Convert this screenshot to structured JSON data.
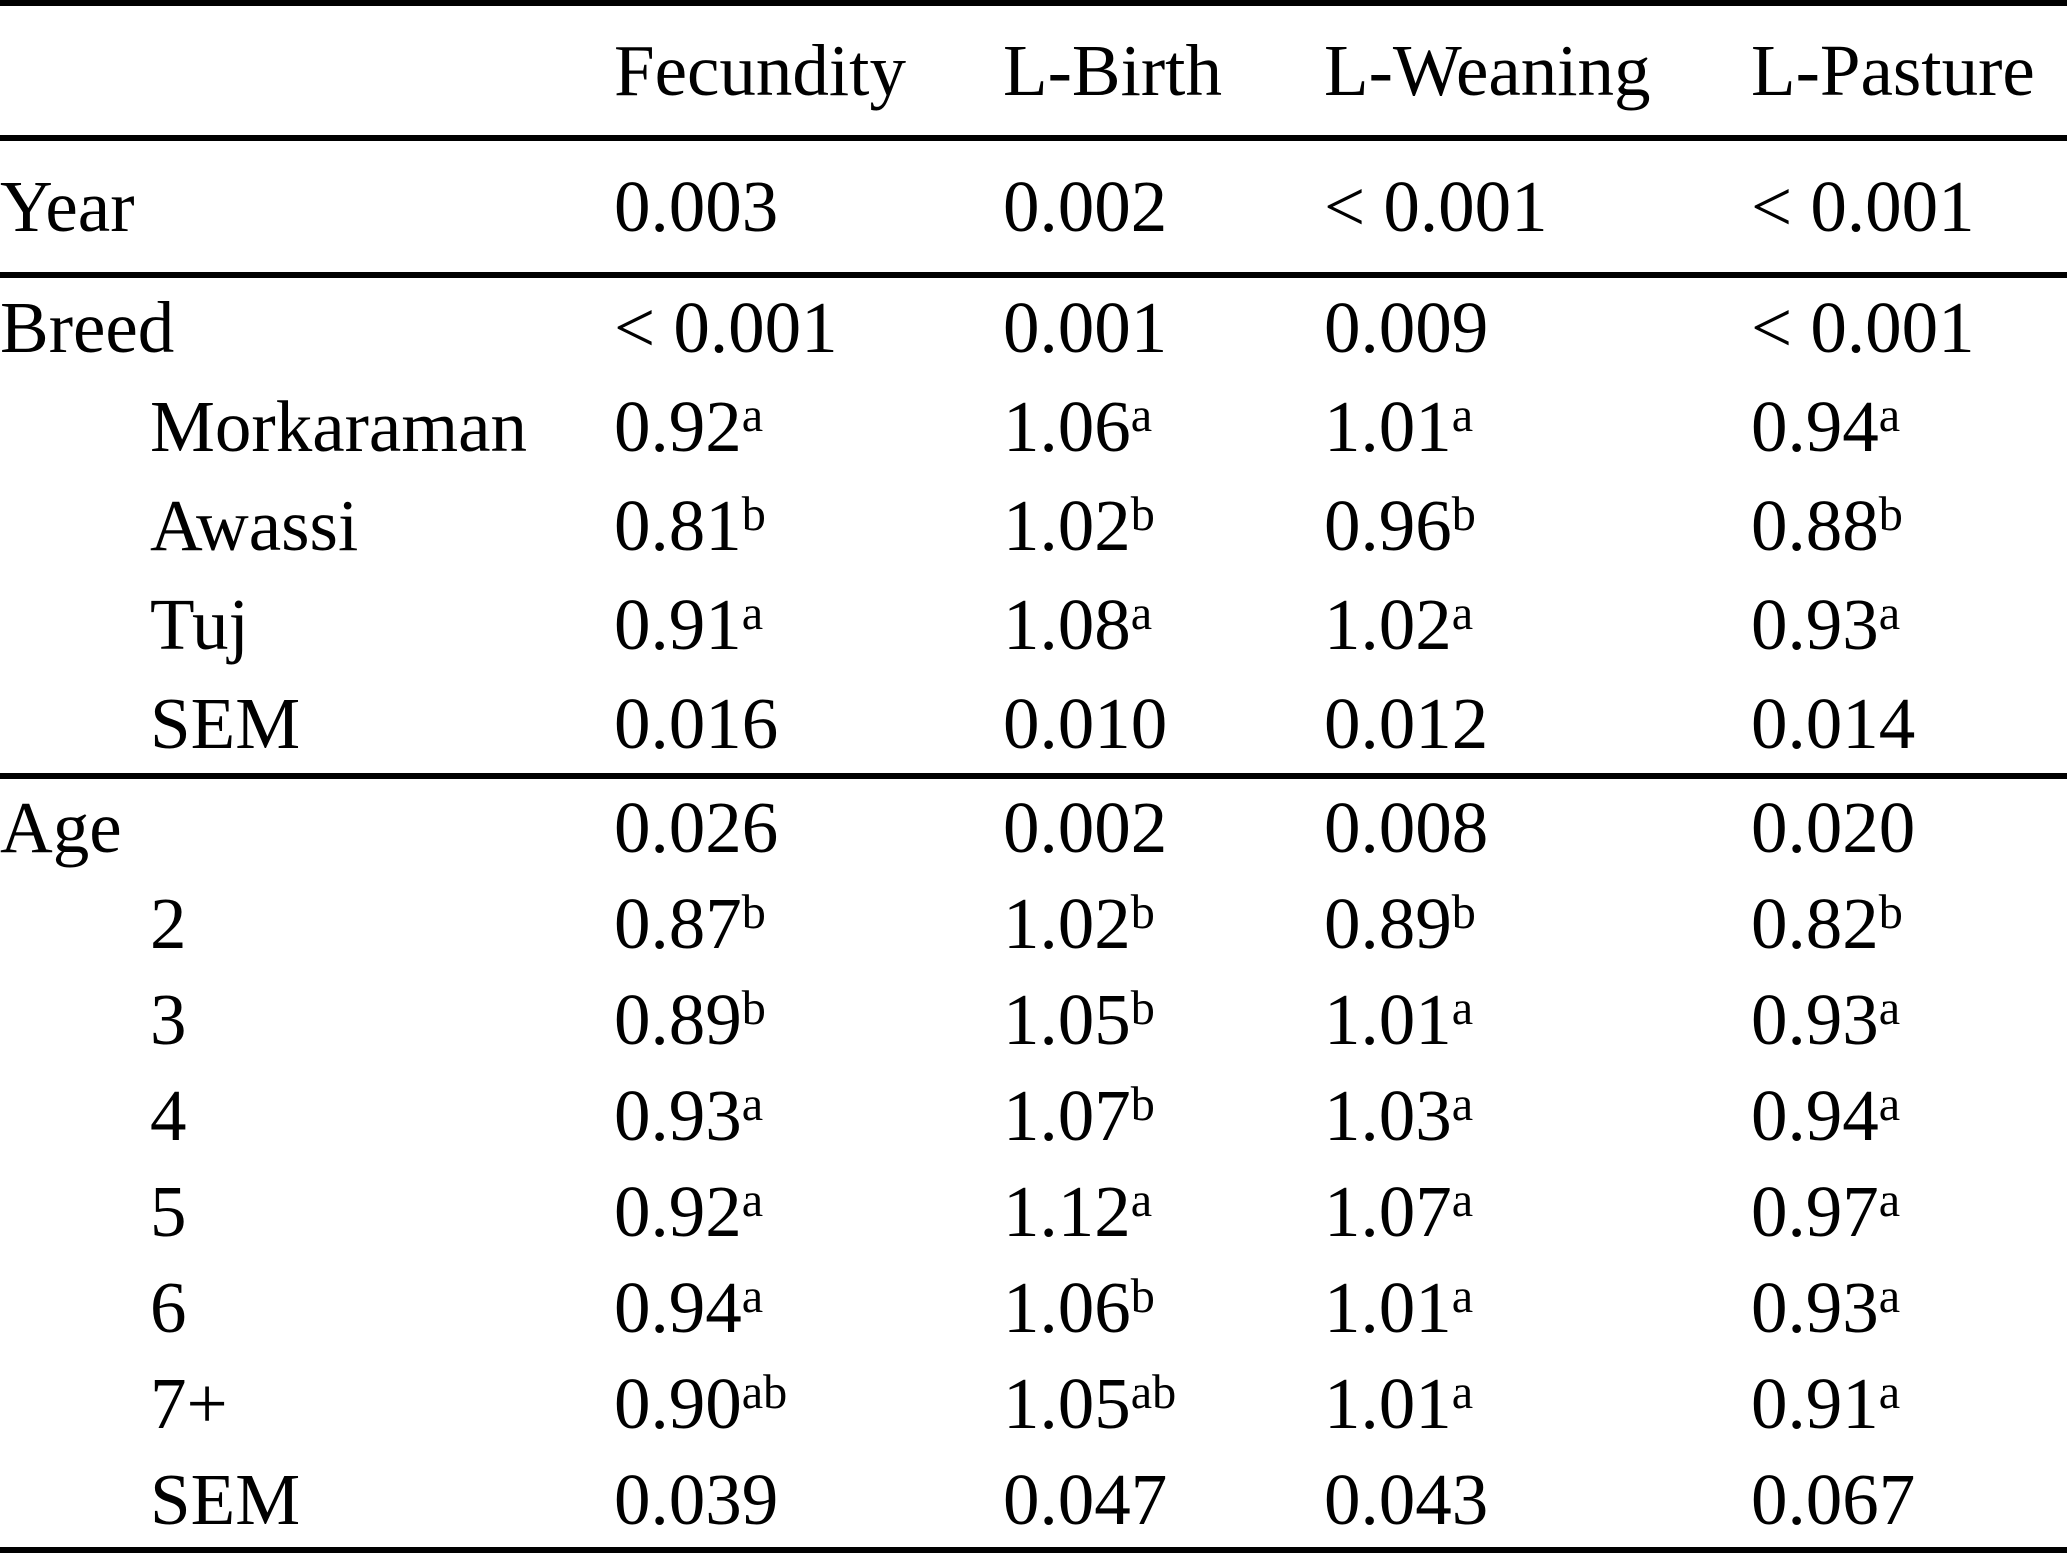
{
  "page": {
    "background_color": "#ffffff",
    "text_color": "#000000",
    "rule_color": "#000000"
  },
  "table": {
    "columns": [
      "",
      "Fecundity",
      "L-Birth",
      "L-Weaning",
      "L-Pasture"
    ],
    "sections": [
      {
        "name": "year",
        "rows": [
          {
            "label": "Year",
            "indent": false,
            "cells": [
              {
                "v": "0.003"
              },
              {
                "v": "0.002"
              },
              {
                "v": "< 0.001"
              },
              {
                "v": "< 0.001"
              }
            ]
          }
        ]
      },
      {
        "name": "breed",
        "rows": [
          {
            "label": "Breed",
            "indent": false,
            "cells": [
              {
                "v": "< 0.001"
              },
              {
                "v": "0.001"
              },
              {
                "v": "0.009"
              },
              {
                "v": "< 0.001"
              }
            ]
          },
          {
            "label": "Morkaraman",
            "indent": true,
            "cells": [
              {
                "v": "0.92",
                "s": "a"
              },
              {
                "v": "1.06",
                "s": "a"
              },
              {
                "v": "1.01",
                "s": "a"
              },
              {
                "v": "0.94",
                "s": "a"
              }
            ]
          },
          {
            "label": "Awassi",
            "indent": true,
            "cells": [
              {
                "v": "0.81",
                "s": "b"
              },
              {
                "v": "1.02",
                "s": "b"
              },
              {
                "v": "0.96",
                "s": "b"
              },
              {
                "v": "0.88",
                "s": "b"
              }
            ]
          },
          {
            "label": "Tuj",
            "indent": true,
            "cells": [
              {
                "v": "0.91",
                "s": "a"
              },
              {
                "v": "1.08",
                "s": "a"
              },
              {
                "v": "1.02",
                "s": "a"
              },
              {
                "v": "0.93",
                "s": "a"
              }
            ]
          },
          {
            "label": "SEM",
            "indent": true,
            "cells": [
              {
                "v": "0.016"
              },
              {
                "v": "0.010"
              },
              {
                "v": "0.012"
              },
              {
                "v": "0.014"
              }
            ]
          }
        ]
      },
      {
        "name": "age",
        "rows": [
          {
            "label": "Age",
            "indent": false,
            "cells": [
              {
                "v": "0.026"
              },
              {
                "v": "0.002"
              },
              {
                "v": "0.008"
              },
              {
                "v": "0.020"
              }
            ]
          },
          {
            "label": "2",
            "indent": true,
            "cells": [
              {
                "v": "0.87",
                "s": "b"
              },
              {
                "v": "1.02",
                "s": "b"
              },
              {
                "v": "0.89",
                "s": "b"
              },
              {
                "v": "0.82",
                "s": "b"
              }
            ]
          },
          {
            "label": "3",
            "indent": true,
            "cells": [
              {
                "v": "0.89",
                "s": "b"
              },
              {
                "v": "1.05",
                "s": "b"
              },
              {
                "v": "1.01",
                "s": "a"
              },
              {
                "v": "0.93",
                "s": "a"
              }
            ]
          },
          {
            "label": "4",
            "indent": true,
            "cells": [
              {
                "v": "0.93",
                "s": "a"
              },
              {
                "v": "1.07",
                "s": "b"
              },
              {
                "v": "1.03",
                "s": "a"
              },
              {
                "v": "0.94",
                "s": "a"
              }
            ]
          },
          {
            "label": "5",
            "indent": true,
            "cells": [
              {
                "v": "0.92",
                "s": "a"
              },
              {
                "v": "1.12",
                "s": "a"
              },
              {
                "v": "1.07",
                "s": "a"
              },
              {
                "v": "0.97",
                "s": "a"
              }
            ]
          },
          {
            "label": "6",
            "indent": true,
            "cells": [
              {
                "v": "0.94",
                "s": "a"
              },
              {
                "v": "1.06",
                "s": "b"
              },
              {
                "v": "1.01",
                "s": "a"
              },
              {
                "v": "0.93",
                "s": "a"
              }
            ]
          },
          {
            "label": "7+",
            "indent": true,
            "cells": [
              {
                "v": "0.90",
                "s": "ab"
              },
              {
                "v": "1.05",
                "s": "ab"
              },
              {
                "v": "1.01",
                "s": "a"
              },
              {
                "v": "0.91",
                "s": "a"
              }
            ]
          },
          {
            "label": "SEM",
            "indent": true,
            "cells": [
              {
                "v": "0.039"
              },
              {
                "v": "0.047"
              },
              {
                "v": "0.043"
              },
              {
                "v": "0.067"
              }
            ]
          }
        ]
      }
    ]
  }
}
